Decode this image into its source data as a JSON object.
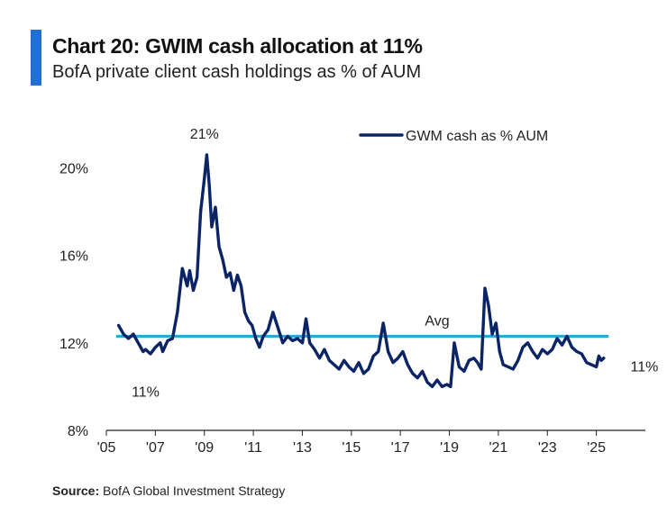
{
  "header": {
    "title": "Chart 20: GWIM cash allocation at 11%",
    "subtitle": "BofA private client cash holdings as % of AUM"
  },
  "footer": {
    "source_label": "Source:",
    "source_text": "BofA Global Investment Strategy"
  },
  "colors": {
    "series": "#0b2466",
    "average": "#29a8dc",
    "accent_bar": "#1f6fd6"
  },
  "chart_data": {
    "type": "line",
    "title": "Chart 20: GWIM cash allocation at 11%",
    "subtitle": "BofA private client cash holdings as % of AUM",
    "xlabel": "",
    "ylabel": "",
    "xlim": [
      2005,
      2027
    ],
    "ylim": [
      8,
      21.5
    ],
    "x_ticks": [
      {
        "value": 2005,
        "label": "'05"
      },
      {
        "value": 2007,
        "label": "'07"
      },
      {
        "value": 2009,
        "label": "'09"
      },
      {
        "value": 2011,
        "label": "'11"
      },
      {
        "value": 2013,
        "label": "'13"
      },
      {
        "value": 2015,
        "label": "'15"
      },
      {
        "value": 2017,
        "label": "'17"
      },
      {
        "value": 2019,
        "label": "'19"
      },
      {
        "value": 2021,
        "label": "'21"
      },
      {
        "value": 2023,
        "label": "'23"
      },
      {
        "value": 2025,
        "label": "'25"
      }
    ],
    "y_ticks": [
      {
        "value": 8,
        "label": "8%"
      },
      {
        "value": 12,
        "label": "12%"
      },
      {
        "value": 16,
        "label": "16%"
      },
      {
        "value": 20,
        "label": "20%"
      }
    ],
    "legend": {
      "position": "top-right",
      "label": "GWM cash as % AUM"
    },
    "average": {
      "value": 12.3,
      "label": "Avg"
    },
    "annotations": [
      {
        "text": "21%",
        "x": 2009.0,
        "y": 21.0
      },
      {
        "text": "11%",
        "x": 2006.6,
        "y": 10.7
      },
      {
        "text": "11%",
        "x": 2026.1,
        "y": 11.2
      }
    ],
    "series": [
      {
        "name": "GWM cash as % AUM",
        "x": [
          2005.5,
          2005.7,
          2005.9,
          2006.1,
          2006.3,
          2006.5,
          2006.6,
          2006.8,
          2007.0,
          2007.2,
          2007.3,
          2007.5,
          2007.7,
          2007.9,
          2008.1,
          2008.3,
          2008.4,
          2008.55,
          2008.7,
          2008.85,
          2009.0,
          2009.1,
          2009.2,
          2009.3,
          2009.45,
          2009.6,
          2009.75,
          2009.9,
          2010.05,
          2010.2,
          2010.35,
          2010.5,
          2010.65,
          2010.8,
          2010.95,
          2011.1,
          2011.25,
          2011.4,
          2011.6,
          2011.8,
          2012.0,
          2012.2,
          2012.4,
          2012.6,
          2012.8,
          2013.0,
          2013.15,
          2013.3,
          2013.5,
          2013.7,
          2013.9,
          2014.1,
          2014.3,
          2014.5,
          2014.7,
          2014.9,
          2015.1,
          2015.3,
          2015.5,
          2015.7,
          2015.9,
          2016.1,
          2016.3,
          2016.5,
          2016.7,
          2016.9,
          2017.1,
          2017.3,
          2017.5,
          2017.7,
          2017.9,
          2018.1,
          2018.3,
          2018.5,
          2018.7,
          2018.9,
          2019.05,
          2019.2,
          2019.4,
          2019.6,
          2019.8,
          2020.0,
          2020.15,
          2020.3,
          2020.45,
          2020.6,
          2020.75,
          2020.9,
          2021.05,
          2021.2,
          2021.4,
          2021.6,
          2021.8,
          2022.0,
          2022.2,
          2022.4,
          2022.6,
          2022.8,
          2023.0,
          2023.2,
          2023.4,
          2023.6,
          2023.8,
          2024.0,
          2024.2,
          2024.4,
          2024.6,
          2024.8,
          2025.0,
          2025.1,
          2025.2,
          2025.3
        ],
        "values": [
          12.8,
          12.4,
          12.2,
          12.4,
          12.0,
          11.6,
          11.7,
          11.5,
          11.8,
          12.0,
          11.6,
          12.1,
          12.2,
          13.4,
          15.4,
          14.6,
          15.3,
          14.4,
          15.0,
          18.0,
          19.5,
          20.6,
          19.2,
          17.3,
          18.2,
          16.4,
          15.8,
          15.0,
          15.2,
          14.4,
          15.1,
          14.6,
          13.4,
          13.0,
          12.8,
          12.2,
          11.8,
          12.3,
          12.6,
          13.4,
          12.7,
          12.0,
          12.3,
          12.1,
          12.2,
          12.0,
          13.1,
          12.0,
          11.7,
          11.3,
          11.7,
          11.2,
          11.0,
          10.8,
          11.2,
          10.9,
          10.7,
          11.1,
          10.6,
          10.8,
          11.4,
          11.6,
          12.9,
          11.6,
          11.1,
          11.3,
          11.6,
          11.0,
          10.6,
          10.4,
          10.7,
          10.2,
          10.0,
          10.3,
          10.0,
          10.1,
          10.0,
          12.0,
          10.9,
          10.7,
          11.2,
          11.3,
          11.1,
          10.8,
          14.5,
          13.7,
          12.4,
          12.9,
          11.6,
          11.0,
          10.9,
          10.8,
          11.2,
          11.8,
          12.0,
          11.6,
          11.3,
          11.7,
          11.5,
          11.7,
          12.2,
          11.9,
          12.3,
          11.8,
          11.6,
          11.5,
          11.1,
          11.0,
          10.9,
          11.4,
          11.2,
          11.3
        ]
      }
    ]
  }
}
